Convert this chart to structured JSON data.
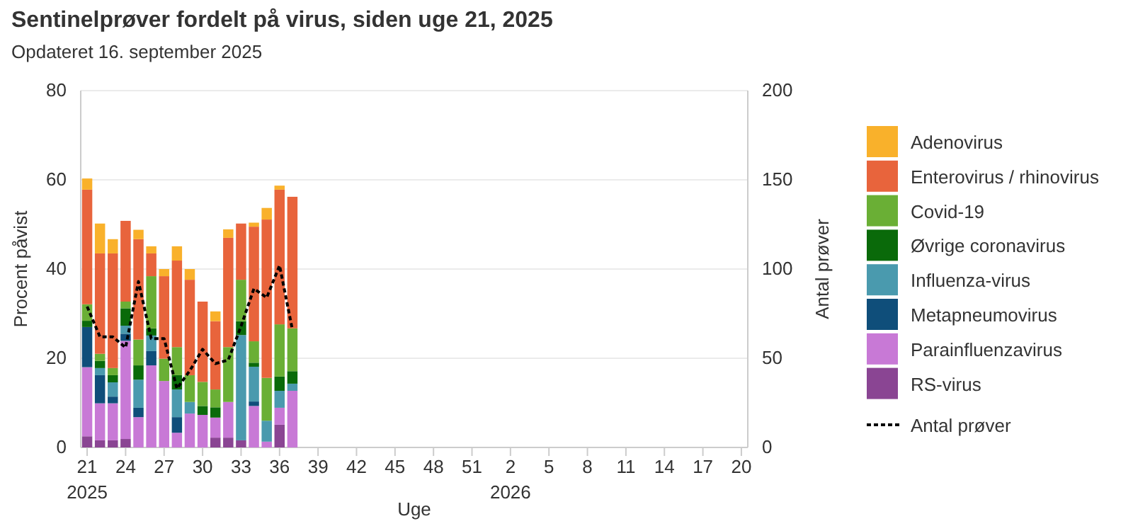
{
  "chart_data": {
    "type": "bar",
    "title": "Sentinelprøver fordelt på virus, siden uge 21, 2025",
    "subtitle": "Opdateret 16. september 2025",
    "xlabel": "Uge",
    "ylabel": "Procent påvist",
    "y2label": "Antal prøver",
    "categories": [
      "21",
      null,
      null,
      "24",
      null,
      null,
      "27",
      null,
      null,
      "30",
      null,
      null,
      "33",
      null,
      null,
      "36",
      null,
      null,
      "39",
      null,
      null,
      "42",
      null,
      null,
      "45",
      null,
      null,
      "48",
      null,
      null,
      "51",
      null,
      null,
      "2",
      null,
      null,
      "5",
      null,
      null,
      "8",
      null,
      null,
      "11",
      null,
      null,
      "14",
      null,
      null,
      "17",
      null,
      null,
      "20"
    ],
    "stacked": true,
    "ylim": [
      0,
      80
    ],
    "yticks": [
      0,
      20,
      40,
      60,
      80
    ],
    "y2lim": [
      0,
      200
    ],
    "y2ticks": [
      0,
      50,
      100,
      150,
      200
    ],
    "grid": "y",
    "legend": "right",
    "annotations": [
      "2025",
      "2026"
    ],
    "series": [
      {
        "name": "RS-virus",
        "color": "#8a4593",
        "values": [
          2.5,
          1.6,
          1.6,
          1.9,
          0,
          0,
          0,
          0,
          0,
          0,
          2.2,
          2.2,
          1.6,
          0,
          0,
          5.1,
          0,
          null,
          null,
          null,
          null,
          null,
          null,
          null,
          null,
          null,
          null,
          null,
          null,
          null,
          null,
          null,
          null,
          null,
          null,
          null,
          null,
          null,
          null,
          null,
          null,
          null,
          null,
          null,
          null,
          null,
          null,
          null,
          null,
          null,
          null,
          null
        ]
      },
      {
        "name": "Parainfluenzavirus",
        "color": "#c879d6",
        "values": [
          15.5,
          8.3,
          8.3,
          22.0,
          6.8,
          18.4,
          14.9,
          3.3,
          7.6,
          7.3,
          4.5,
          8.0,
          0,
          9.3,
          1.3,
          3.8,
          12.7,
          null,
          null,
          null,
          null,
          null,
          null,
          null,
          null,
          null,
          null,
          null,
          null,
          null,
          null,
          null,
          null,
          null,
          null,
          null,
          null,
          null,
          null,
          null,
          null,
          null,
          null,
          null,
          null,
          null,
          null,
          null,
          null,
          null,
          null,
          null
        ]
      },
      {
        "name": "Metapneumovirus",
        "color": "#0f4e7a",
        "values": [
          9.0,
          6.3,
          1.5,
          1.6,
          2.1,
          3.2,
          0,
          3.5,
          0,
          0,
          0,
          0,
          0,
          1.0,
          0,
          0,
          0,
          null,
          null,
          null,
          null,
          null,
          null,
          null,
          null,
          null,
          null,
          null,
          null,
          null,
          null,
          null,
          null,
          null,
          null,
          null,
          null,
          null,
          null,
          null,
          null,
          null,
          null,
          null,
          null,
          null,
          null,
          null,
          null,
          null,
          null,
          null
        ]
      },
      {
        "name": "Influenza-virus",
        "color": "#4a9aae",
        "values": [
          0,
          1.6,
          3.2,
          1.8,
          6.3,
          3.5,
          0,
          6.2,
          2.6,
          0,
          0,
          0,
          23.6,
          7.8,
          4.7,
          3.8,
          1.6,
          null,
          null,
          null,
          null,
          null,
          null,
          null,
          null,
          null,
          null,
          null,
          null,
          null,
          null,
          null,
          null,
          null,
          null,
          null,
          null,
          null,
          null,
          null,
          null,
          null,
          null,
          null,
          null,
          null,
          null,
          null,
          null,
          null,
          null,
          null
        ]
      },
      {
        "name": "Øvrige coronavirus",
        "color": "#0a6a0a",
        "values": [
          1.4,
          1.6,
          1.6,
          3.9,
          3.2,
          1.6,
          0,
          3.2,
          0,
          2.0,
          2.3,
          0,
          3.1,
          0.9,
          0,
          3.2,
          2.8,
          null,
          null,
          null,
          null,
          null,
          null,
          null,
          null,
          null,
          null,
          null,
          null,
          null,
          null,
          null,
          null,
          null,
          null,
          null,
          null,
          null,
          null,
          null,
          null,
          null,
          null,
          null,
          null,
          null,
          null,
          null,
          null,
          null,
          null,
          null
        ]
      },
      {
        "name": "Covid-19",
        "color": "#6aaf35",
        "values": [
          3.7,
          1.6,
          1.6,
          1.5,
          5.8,
          11.7,
          5.0,
          6.3,
          6.0,
          5.4,
          4.0,
          12.3,
          9.3,
          4.8,
          9.6,
          11.7,
          9.6,
          null,
          null,
          null,
          null,
          null,
          null,
          null,
          null,
          null,
          null,
          null,
          null,
          null,
          null,
          null,
          null,
          null,
          null,
          null,
          null,
          null,
          null,
          null,
          null,
          null,
          null,
          null,
          null,
          null,
          null,
          null,
          null,
          null,
          null,
          null
        ]
      },
      {
        "name": "Enterovirus / rhinovirus",
        "color": "#e8643c",
        "values": [
          25.7,
          22.5,
          25.7,
          18.1,
          22.5,
          5.1,
          18.5,
          19.4,
          21.4,
          18.0,
          15.3,
          24.5,
          12.6,
          25.7,
          35.5,
          30.2,
          29.5,
          null,
          null,
          null,
          null,
          null,
          null,
          null,
          null,
          null,
          null,
          null,
          null,
          null,
          null,
          null,
          null,
          null,
          null,
          null,
          null,
          null,
          null,
          null,
          null,
          null,
          null,
          null,
          null,
          null,
          null,
          null,
          null,
          null,
          null,
          null
        ]
      },
      {
        "name": "Adenovirus",
        "color": "#f9b12b",
        "values": [
          2.5,
          6.7,
          3.2,
          0,
          2.1,
          1.6,
          1.6,
          3.2,
          2.4,
          0,
          2.2,
          1.9,
          0,
          0.9,
          2.6,
          0.9,
          0,
          null,
          null,
          null,
          null,
          null,
          null,
          null,
          null,
          null,
          null,
          null,
          null,
          null,
          null,
          null,
          null,
          null,
          null,
          null,
          null,
          null,
          null,
          null,
          null,
          null,
          null,
          null,
          null,
          null,
          null,
          null,
          null,
          null,
          null,
          null
        ]
      },
      {
        "name": "Antal prøver",
        "type": "line",
        "axis": "y2",
        "color": "#000000",
        "line_style": "dashed",
        "marker": "none",
        "values": [
          79,
          62,
          62,
          56,
          93,
          61,
          61,
          33,
          43,
          55,
          47,
          49,
          68,
          89,
          84,
          102,
          66,
          null,
          null,
          null,
          null,
          null,
          null,
          null,
          null,
          null,
          null,
          null,
          null,
          null,
          null,
          null,
          null,
          null,
          null,
          null,
          null,
          null,
          null,
          null,
          null,
          null,
          null,
          null,
          null,
          null,
          null,
          null,
          null,
          null,
          null,
          null
        ]
      }
    ]
  }
}
